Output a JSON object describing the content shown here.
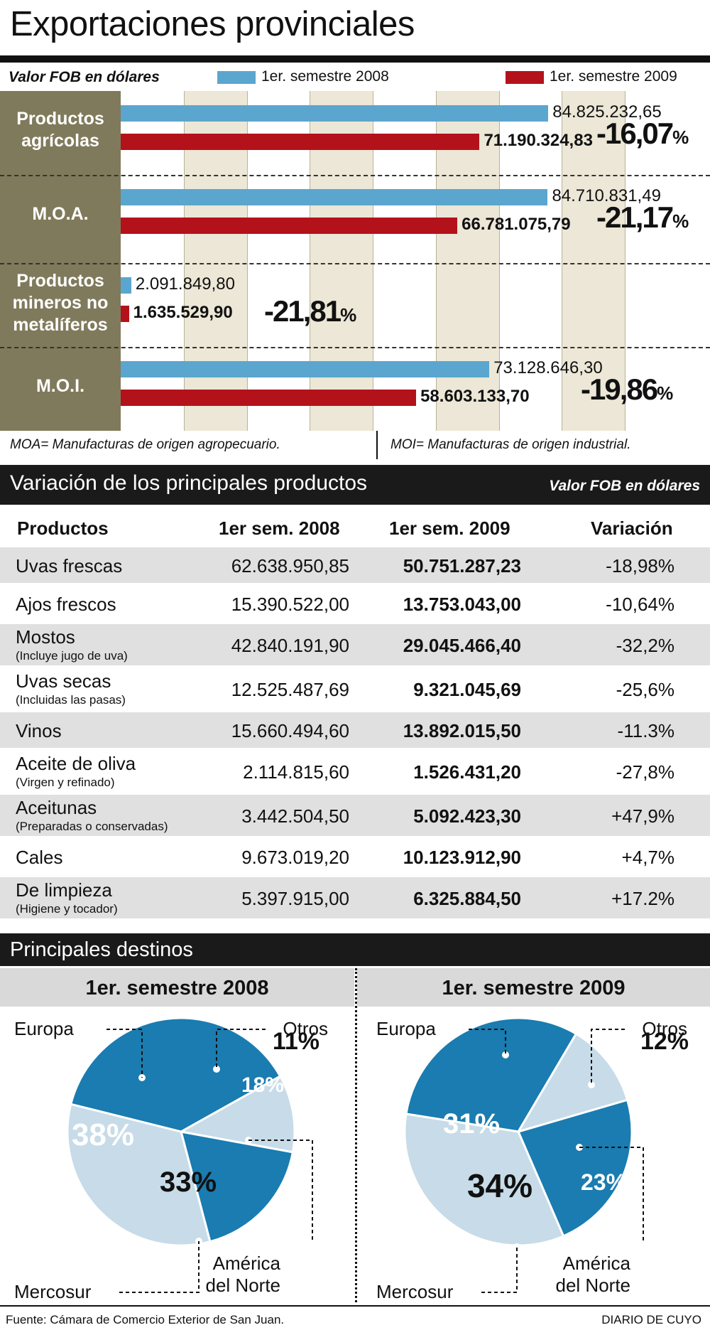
{
  "title": "Exportaciones provinciales",
  "legend": {
    "unit_label": "Valor FOB en dólares",
    "series": [
      {
        "name": "1er. semestre 2008",
        "color": "#5ba6cf"
      },
      {
        "name": "1er. semestre 2009",
        "color": "#b3121b"
      }
    ]
  },
  "chart_data": [
    {
      "type": "bar",
      "orientation": "horizontal",
      "title": "",
      "categories": [
        "Productos agrícolas",
        "M.O.A.",
        "Productos mineros no metalíferos",
        "M.O.I."
      ],
      "category_lines": [
        [
          "Productos",
          "agrícolas"
        ],
        [
          "M.O.A."
        ],
        [
          "Productos",
          "mineros no",
          "metalíferos"
        ],
        [
          "M.O.I."
        ]
      ],
      "series": [
        {
          "name": "1er. semestre 2008",
          "values": [
            84825232.65,
            84710831.49,
            2091849.8,
            73128646.3
          ],
          "labels": [
            "84.825.232,65",
            "84.710.831,49",
            "2.091.849,80",
            "73.128.646,30"
          ]
        },
        {
          "name": "1er. semestre 2009",
          "values": [
            71190324.83,
            66781075.79,
            1635529.9,
            58603133.7
          ],
          "labels": [
            "71.190.324,83",
            "66.781.075,79",
            "1.635.529,90",
            "58.603.133,70"
          ]
        }
      ],
      "variation_num": [
        "-16,07",
        "-21,17",
        "-21,81",
        "-19,86"
      ],
      "variation_unit": "%",
      "xlim": [
        0,
        100000000
      ],
      "grid": true
    },
    {
      "type": "pie",
      "title": "1er. semestre 2008",
      "slices": [
        {
          "label": "Europa",
          "value": 38,
          "display": "38%",
          "color": "#1a7cb0"
        },
        {
          "label": "Otros",
          "value": 11,
          "display": "11%",
          "color": "#c7dbe8"
        },
        {
          "label": "América del Norte",
          "value": 18,
          "display": "18%",
          "color": "#1a7cb0"
        },
        {
          "label": "Mercosur",
          "value": 33,
          "display": "33%",
          "color": "#c7dbe8"
        }
      ]
    },
    {
      "type": "pie",
      "title": "1er. semestre 2009",
      "slices": [
        {
          "label": "Europa",
          "value": 31,
          "display": "31%",
          "color": "#1a7cb0"
        },
        {
          "label": "Otros",
          "value": 12,
          "display": "12%",
          "color": "#c7dbe8"
        },
        {
          "label": "América del Norte",
          "value": 23,
          "display": "23%",
          "color": "#1a7cb0"
        },
        {
          "label": "Mercosur",
          "value": 34,
          "display": "34%",
          "color": "#c7dbe8"
        }
      ]
    }
  ],
  "notes": {
    "moa": "MOA= Manufacturas de origen agropecuario.",
    "moi": "MOI= Manufacturas de origen industrial."
  },
  "products": {
    "title": "Variación de los principales productos",
    "unit_label": "Valor FOB en dólares",
    "headers": [
      "Productos",
      "1er sem. 2008",
      "1er sem. 2009",
      "Variación"
    ],
    "rows": [
      {
        "name": "Uvas frescas",
        "sub": "",
        "v2008": "62.638.950,85",
        "v2009": "50.751.287,23",
        "var": "-18,98%"
      },
      {
        "name": "Ajos frescos",
        "sub": "",
        "v2008": "15.390.522,00",
        "v2009": "13.753.043,00",
        "var": "-10,64%"
      },
      {
        "name": "Mostos",
        "sub": "(Incluye jugo de uva)",
        "v2008": "42.840.191,90",
        "v2009": "29.045.466,40",
        "var": "-32,2%"
      },
      {
        "name": "Uvas secas",
        "sub": "(Incluidas las pasas)",
        "v2008": "12.525.487,69",
        "v2009": "9.321.045,69",
        "var": "-25,6%"
      },
      {
        "name": "Vinos",
        "sub": "",
        "v2008": "15.660.494,60",
        "v2009": "13.892.015,50",
        "var": "-11.3%"
      },
      {
        "name": "Aceite de oliva",
        "sub": "(Virgen y refinado)",
        "v2008": "2.114.815,60",
        "v2009": "1.526.431,20",
        "var": "-27,8%"
      },
      {
        "name": "Aceitunas",
        "sub": "(Preparadas o conservadas)",
        "v2008": "3.442.504,50",
        "v2009": "5.092.423,30",
        "var": "+47,9%"
      },
      {
        "name": "Cales",
        "sub": "",
        "v2008": "9.673.019,20",
        "v2009": "10.123.912,90",
        "var": "+4,7%"
      },
      {
        "name": "De limpieza",
        "sub": "(Higiene y tocador)",
        "v2008": "5.397.915,00",
        "v2009": "6.325.884,50",
        "var": "+17.2%"
      }
    ]
  },
  "destinations": {
    "title": "Principales destinos",
    "label_lines": {
      "europa": [
        "Europa"
      ],
      "otros": [
        "Otros"
      ],
      "norte": [
        "América",
        "del Norte"
      ],
      "mercosur": [
        "Mercosur"
      ]
    }
  },
  "footer": {
    "source": "Fuente: Cámara de Comercio Exterior de San Juan.",
    "credit": "DIARIO DE CUYO"
  }
}
